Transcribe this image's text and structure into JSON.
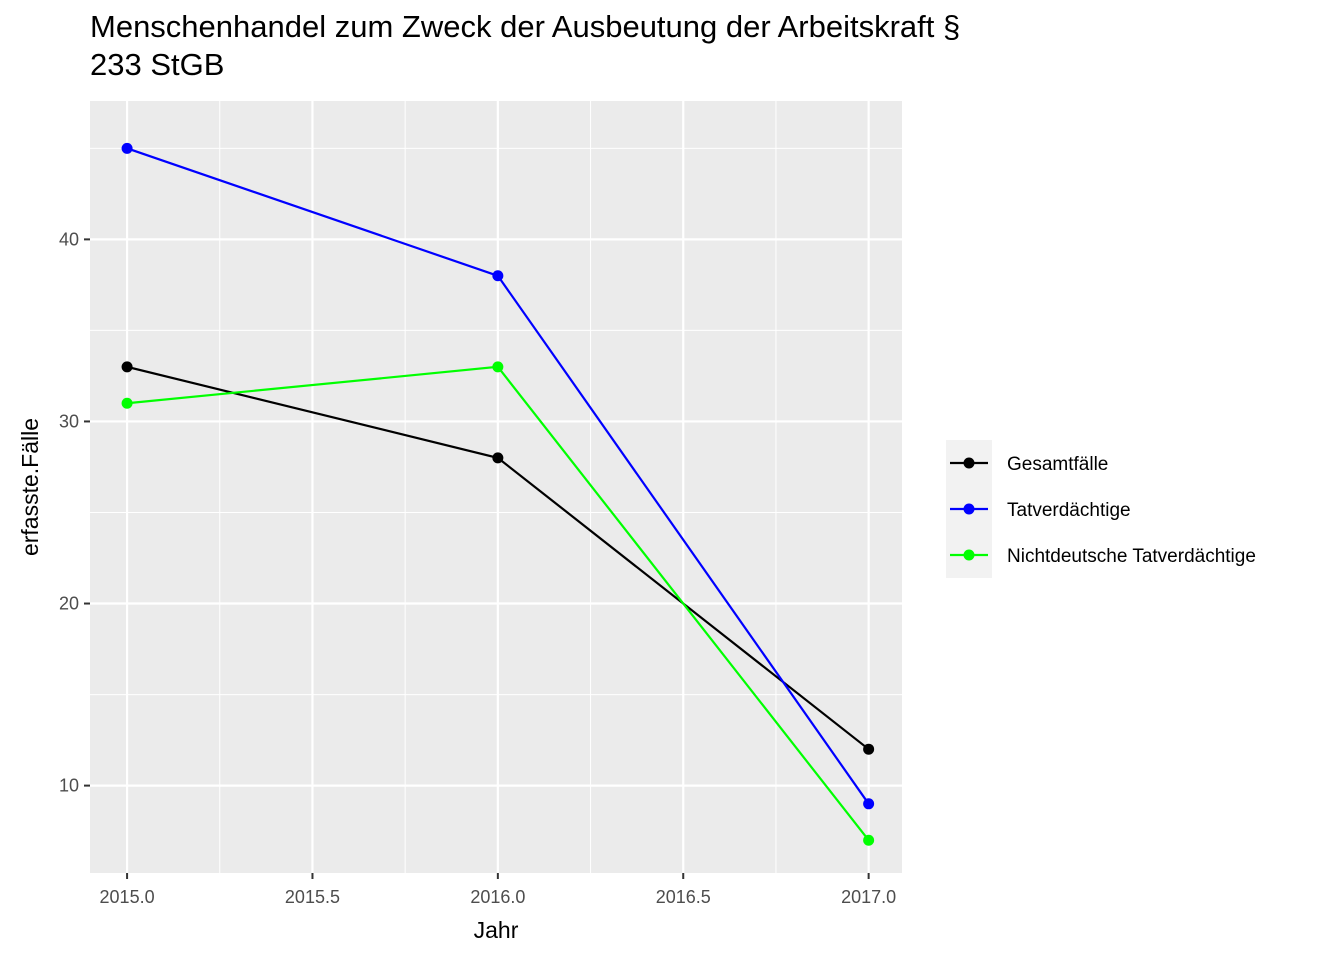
{
  "chart_data": {
    "type": "line",
    "title_lines": [
      "Menschenhandel zum Zweck der Ausbeutung der Arbeitskraft §",
      "233 StGB"
    ],
    "xlabel": "Jahr",
    "ylabel": "erfasste.Fälle",
    "x": [
      2015.0,
      2016.0,
      2017.0
    ],
    "xlim": [
      2014.9,
      2017.09
    ],
    "ylim": [
      5.2,
      47.6
    ],
    "x_ticks": [
      "2015.0",
      "2015.5",
      "2016.0",
      "2016.5",
      "2017.0"
    ],
    "x_tick_values": [
      2015.0,
      2015.5,
      2016.0,
      2016.5,
      2017.0
    ],
    "y_ticks": [
      "10",
      "20",
      "30",
      "40"
    ],
    "y_tick_values": [
      10,
      20,
      30,
      40
    ],
    "grid": true,
    "legend_position": "right",
    "series": [
      {
        "name": "Gesamtfälle",
        "color": "#000000",
        "values": [
          33,
          28,
          12
        ]
      },
      {
        "name": "Tatverdächtige",
        "color": "#0000ff",
        "values": [
          45,
          38,
          9
        ]
      },
      {
        "name": "Nichtdeutsche Tatverdächtige",
        "color": "#00ff00",
        "values": [
          31,
          33,
          7
        ]
      }
    ]
  }
}
